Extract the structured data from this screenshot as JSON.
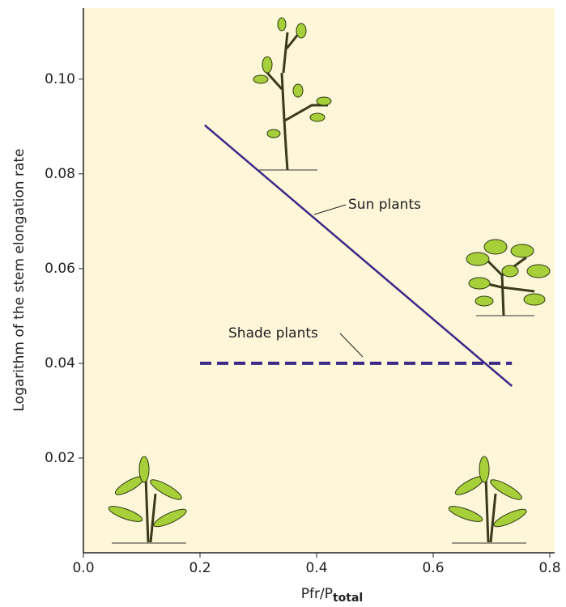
{
  "chart_data": {
    "type": "line",
    "x_label": "Pfr/P",
    "x_label_subscript": "total",
    "y_label": "Logarithm of the stem elongation rate",
    "xlim": [
      0,
      0.8
    ],
    "ylim": [
      0,
      0.115
    ],
    "xticks": [
      {
        "value": 0,
        "label": "0.0"
      },
      0.2,
      0.4,
      0.6,
      0.8
    ],
    "yticks": [
      0.02,
      0.04,
      0.06,
      0.08,
      {
        "value": 0.1,
        "label": "0.10"
      }
    ],
    "background": "#fdf6d9",
    "series": [
      {
        "name": "Sun plants",
        "color": "#3b2a86",
        "style": "solid",
        "x": [
          0.208,
          0.735
        ],
        "values": [
          0.0903,
          0.0352
        ]
      },
      {
        "name": "Shade plants",
        "color": "#3b2a86",
        "style": "dashed",
        "x": [
          0.2,
          0.735
        ],
        "values": [
          0.04,
          0.04
        ]
      }
    ]
  }
}
